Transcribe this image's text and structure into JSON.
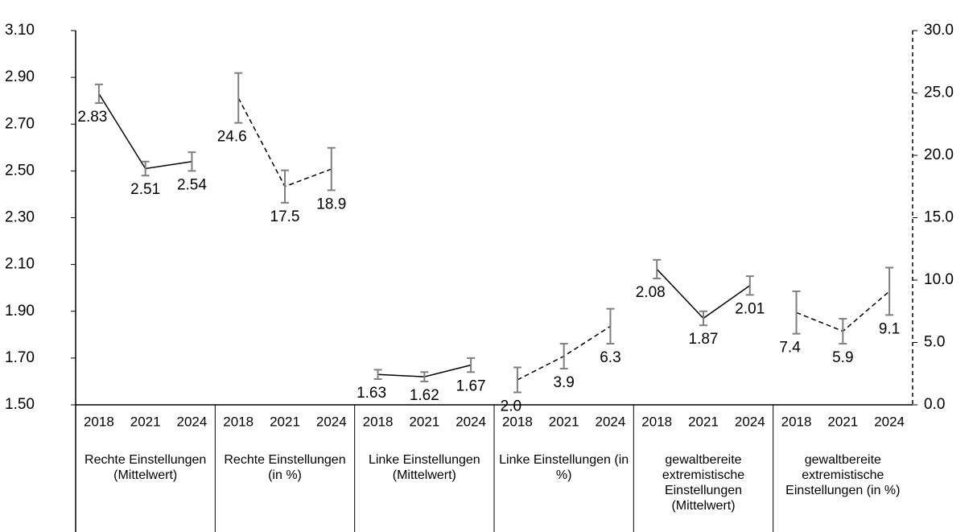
{
  "chart_data": {
    "type": "line",
    "ylim": [
      1.5,
      3.1
    ],
    "yticks": [
      {
        "value": 1.5,
        "label": "1.50"
      },
      {
        "value": 1.7,
        "label": "1.70"
      },
      {
        "value": 1.9,
        "label": "1.90"
      },
      {
        "value": 2.1,
        "label": "2.10"
      },
      {
        "value": 2.3,
        "label": "2.30"
      },
      {
        "value": 2.5,
        "label": "2.50"
      },
      {
        "value": 2.7,
        "label": "2.70"
      },
      {
        "value": 2.9,
        "label": "2.90"
      },
      {
        "value": 3.1,
        "label": "3.10"
      }
    ],
    "y2lim": [
      0,
      30
    ],
    "y2ticks": [
      {
        "value": 0,
        "label": "0.0"
      },
      {
        "value": 5,
        "label": "5.0"
      },
      {
        "value": 10,
        "label": "10.0"
      },
      {
        "value": 15,
        "label": "15.0"
      },
      {
        "value": 20,
        "label": "20.0"
      },
      {
        "value": 25,
        "label": "25.0"
      },
      {
        "value": 30,
        "label": "30.0"
      }
    ],
    "groups": [
      {
        "name": "Rechte Einstellungen (Mittelwert)",
        "categories": [
          "2018",
          "2021",
          "2024"
        ],
        "values": [
          2.83,
          2.51,
          2.54
        ],
        "errors": [
          0.04,
          0.03,
          0.04
        ],
        "axis": "y",
        "dashed": false,
        "color": "#000000",
        "error_color": "#7f7f7f"
      },
      {
        "name": "Rechte Einstellungen (in %)",
        "categories": [
          "2018",
          "2021",
          "2024"
        ],
        "values": [
          24.6,
          17.5,
          18.9
        ],
        "errors": [
          2.0,
          1.3,
          1.7
        ],
        "axis": "y2",
        "dashed": true,
        "color": "#000000",
        "error_color": "#7f7f7f"
      },
      {
        "name": "Linke Einstellungen (Mittelwert)",
        "categories": [
          "2018",
          "2021",
          "2024"
        ],
        "values": [
          1.63,
          1.62,
          1.67
        ],
        "errors": [
          0.02,
          0.02,
          0.03
        ],
        "axis": "y",
        "dashed": false,
        "color": "#000000",
        "error_color": "#7f7f7f"
      },
      {
        "name": "Linke Einstellungen (in %)",
        "categories": [
          "2018",
          "2021",
          "2024"
        ],
        "values": [
          2,
          3.9,
          6.3
        ],
        "value_labels": [
          "2.0",
          "3.9",
          "6.3"
        ],
        "errors": [
          1.0,
          1.0,
          1.4
        ],
        "axis": "y2",
        "dashed": true,
        "color": "#000000",
        "error_color": "#7f7f7f"
      },
      {
        "name": "gewaltbereite extremistische Einstellungen (Mittelwert)",
        "categories": [
          "2018",
          "2021",
          "2024"
        ],
        "values": [
          2.08,
          1.87,
          2.01
        ],
        "errors": [
          0.04,
          0.03,
          0.04
        ],
        "axis": "y",
        "dashed": false,
        "color": "#000000",
        "error_color": "#7f7f7f"
      },
      {
        "name": "gewaltbereite extremistische Einstellungen (in %)",
        "categories": [
          "2018",
          "2021",
          "2024"
        ],
        "values": [
          7.4,
          5.9,
          9.1
        ],
        "errors": [
          1.7,
          1.0,
          1.9
        ],
        "axis": "y2",
        "dashed": true,
        "color": "#000000",
        "error_color": "#7f7f7f"
      }
    ]
  }
}
